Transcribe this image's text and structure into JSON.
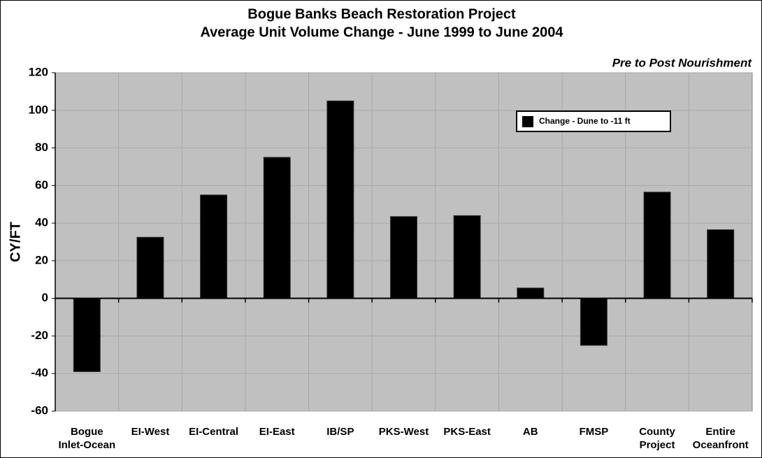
{
  "chart_data": {
    "type": "bar",
    "title": "Bogue Banks Beach Restoration Project",
    "subtitle": "Average Unit Volume Change - June 1999 to June 2004",
    "annotation": "Pre to Post Nourishment",
    "y_label": "CY/FT",
    "categories": [
      "Bogue\nInlet-Ocean",
      "EI-West",
      "EI-Central",
      "EI-East",
      "IB/SP",
      "PKS-West",
      "PKS-East",
      "AB",
      "FMSP",
      "County\nProject",
      "Entire\nOceanfront"
    ],
    "series": [
      {
        "name": "Change - Dune to -11 ft",
        "color": "#000000",
        "values": [
          -39,
          32.5,
          55,
          75,
          105,
          43.5,
          44,
          5.5,
          -25,
          56.5,
          36.5
        ]
      }
    ],
    "ylim": [
      -60,
      120
    ],
    "yticks": [
      -60,
      -40,
      -20,
      0,
      20,
      40,
      60,
      80,
      100,
      120
    ],
    "grid": true,
    "legend": "top-right",
    "background": "#c0c0c0"
  }
}
